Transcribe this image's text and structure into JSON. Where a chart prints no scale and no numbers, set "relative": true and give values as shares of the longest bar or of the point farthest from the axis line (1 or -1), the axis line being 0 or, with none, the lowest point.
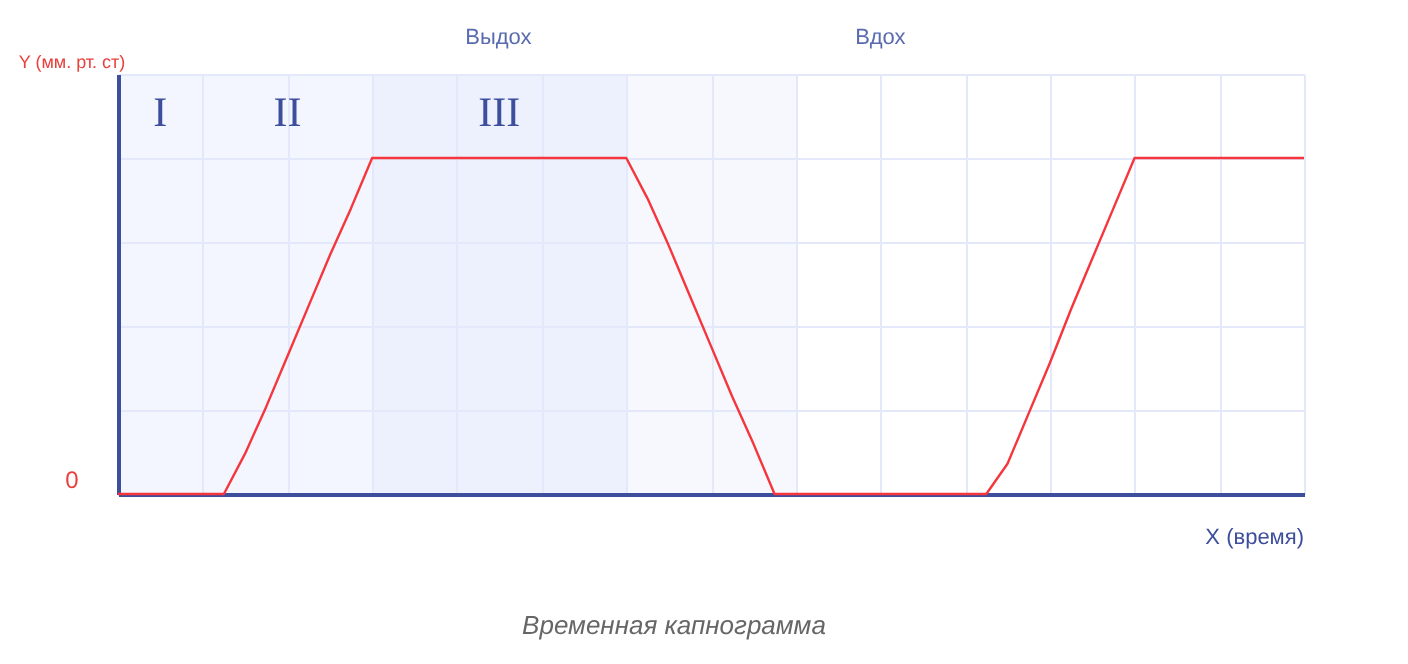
{
  "chart_data": {
    "type": "line",
    "relative": true,
    "title": "Временная капнограмма",
    "xlabel": "X (время)",
    "ylabel": "Y (мм. рт. ст)",
    "categories": [
      null,
      null,
      null,
      null,
      null,
      null,
      null,
      null,
      null,
      null,
      null,
      null,
      null,
      null,
      null,
      null,
      null,
      null,
      null,
      null,
      null,
      null,
      null,
      null,
      null,
      null,
      null,
      null,
      null,
      null,
      null,
      null,
      null,
      null,
      null,
      null,
      null,
      null,
      null,
      null,
      null,
      null,
      null,
      null,
      null,
      null,
      null,
      null,
      null,
      null,
      null,
      null,
      null,
      null,
      null,
      null,
      null
    ],
    "series": [
      {
        "color": "#f5363c",
        "values": [
          0,
          0,
          0,
          0,
          0,
          0,
          0.12,
          0.26,
          0.41,
          0.56,
          0.71,
          0.85,
          1,
          1,
          1,
          1,
          1,
          1,
          1,
          1,
          1,
          1,
          1,
          1,
          1,
          0.88,
          0.74,
          0.59,
          0.44,
          0.29,
          0.15,
          0,
          0,
          0,
          0,
          0,
          0,
          0,
          0,
          0,
          0,
          0,
          0.09,
          0.24,
          0.39,
          0.55,
          0.7,
          0.85,
          1,
          1,
          1,
          1,
          1,
          1,
          1,
          1,
          1
        ]
      }
    ],
    "grid": true,
    "annotations": [
      "I",
      "II",
      "III",
      "Выдох",
      "Вдох",
      "0"
    ]
  }
}
